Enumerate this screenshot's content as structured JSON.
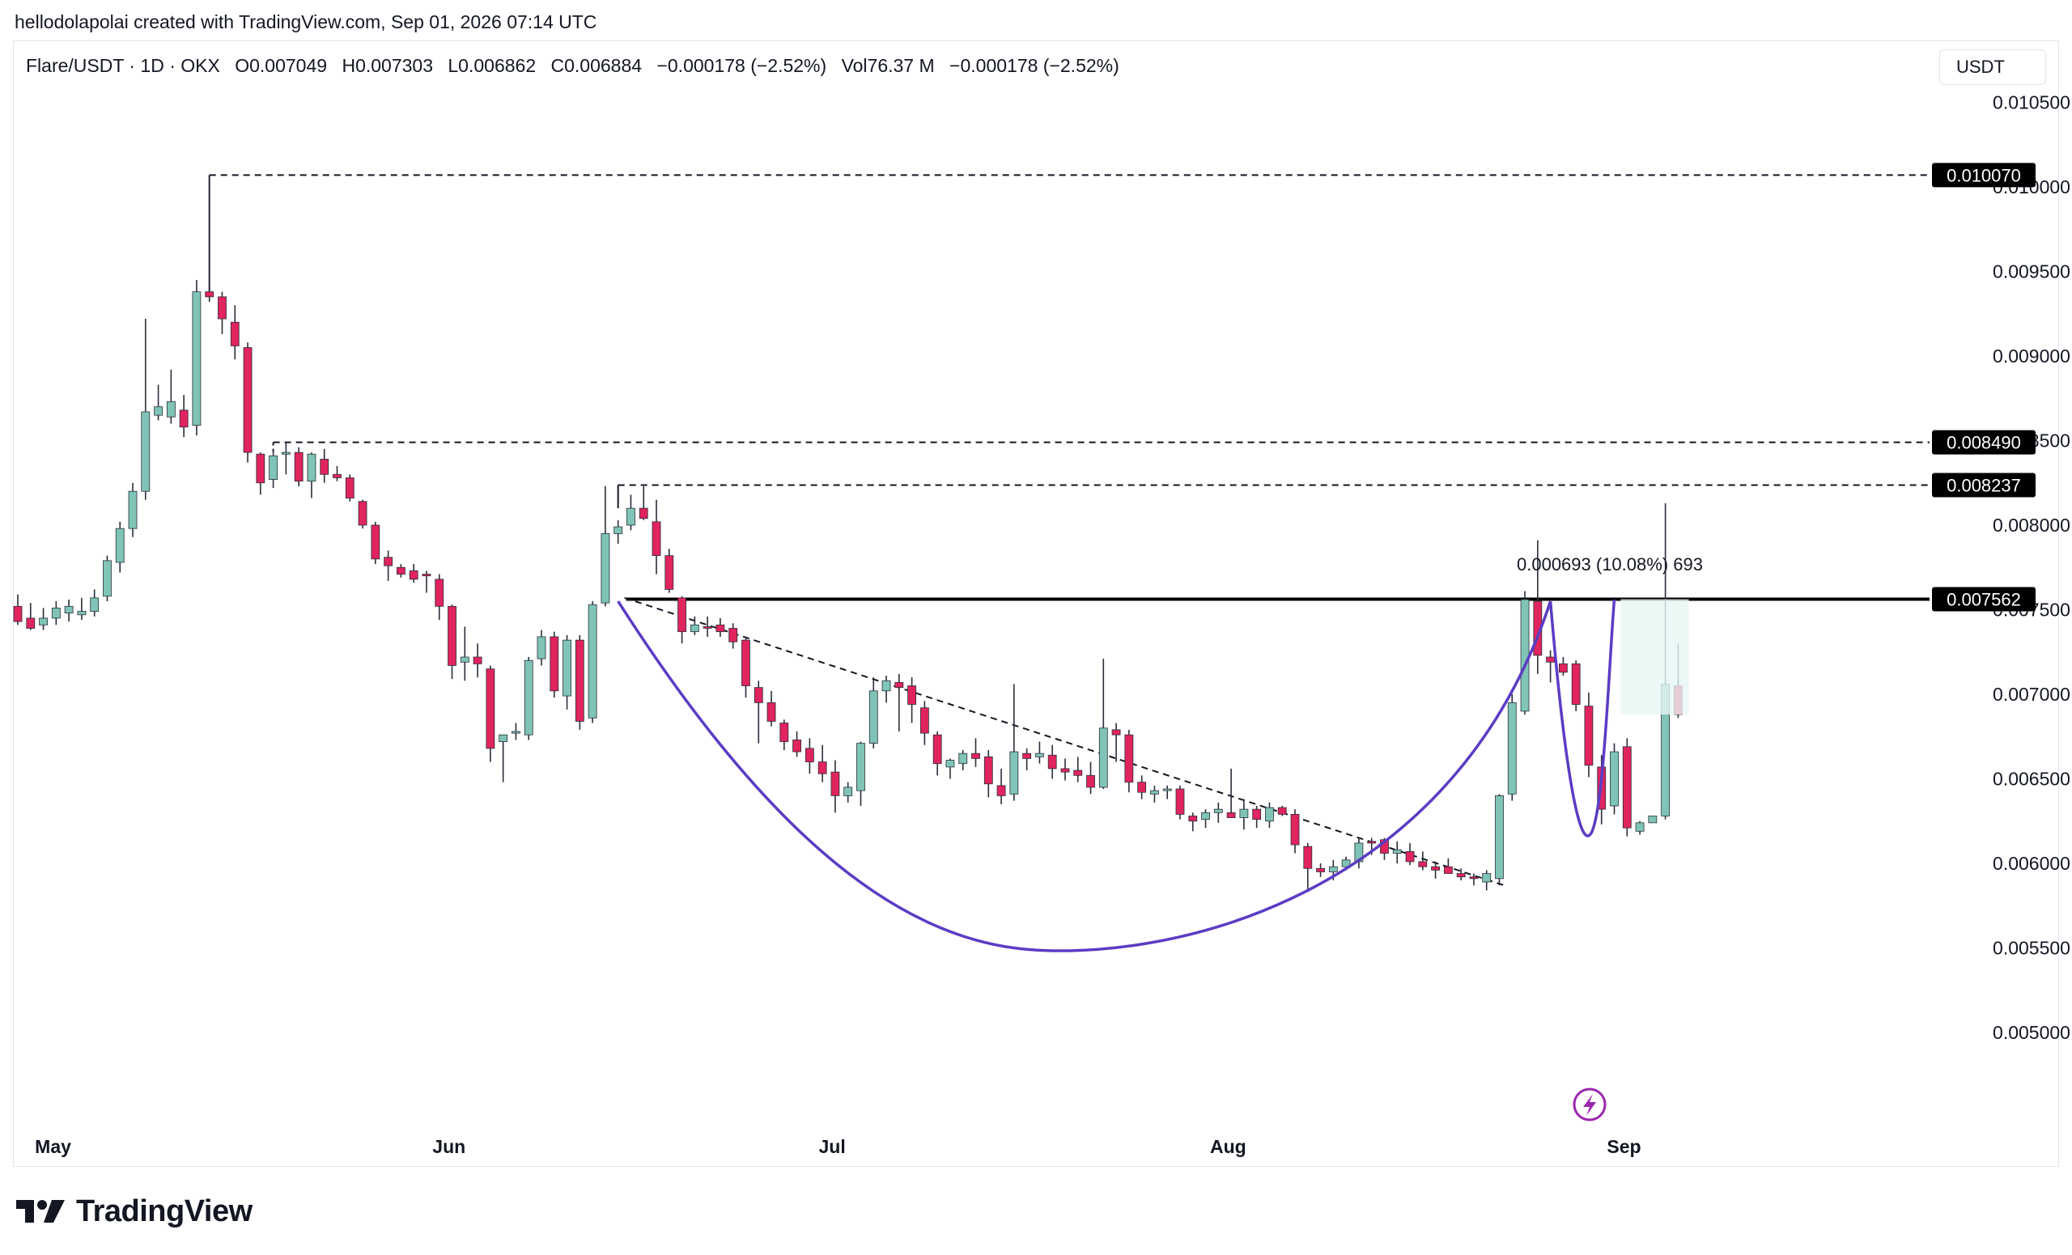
{
  "caption": "hellodolapolai created with TradingView.com, Sep 01, 2026 07:14 UTC",
  "legend": {
    "symbol": "Flare/USDT · 1D · OKX",
    "open": "O0.007049",
    "high": "H0.007303",
    "low": "L0.006862",
    "close": "C0.006884",
    "change": "−0.000178 (−2.52%)",
    "volume": "Vol76.37 M",
    "volume_change": "−0.000178 (−2.52%)"
  },
  "currency": "USDT",
  "brand": "TradingView",
  "colors": {
    "up": "#7fc4b6",
    "down": "#e0245e",
    "curve": "#5b3cc4",
    "line": "#000000"
  },
  "chart_data": {
    "type": "candlestick",
    "ylim": [
      0.0047,
      0.0106
    ],
    "y_ticks": [
      "0.010500",
      "0.010000",
      "0.009500",
      "0.009000",
      "0.008500",
      "0.008000",
      "0.007500",
      "0.007000",
      "0.006500",
      "0.006000",
      "0.005500",
      "0.005000"
    ],
    "x_labels": [
      {
        "label": "May",
        "index": 2
      },
      {
        "label": "Jun",
        "index": 33
      },
      {
        "label": "Jul",
        "index": 63
      },
      {
        "label": "Aug",
        "index": 94
      },
      {
        "label": "Sep",
        "index": 125
      }
    ],
    "candles": [
      [
        0.00752,
        0.00759,
        0.00741,
        0.00743
      ],
      [
        0.00745,
        0.00754,
        0.00738,
        0.00739
      ],
      [
        0.00741,
        0.00751,
        0.00738,
        0.00745
      ],
      [
        0.00745,
        0.00755,
        0.00741,
        0.00751
      ],
      [
        0.00748,
        0.00756,
        0.00743,
        0.00752
      ],
      [
        0.00747,
        0.00757,
        0.00744,
        0.00749
      ],
      [
        0.00749,
        0.00762,
        0.00746,
        0.00757
      ],
      [
        0.00758,
        0.00782,
        0.00755,
        0.00779
      ],
      [
        0.00778,
        0.00802,
        0.00772,
        0.00798
      ],
      [
        0.00798,
        0.00825,
        0.00793,
        0.0082
      ],
      [
        0.0082,
        0.00922,
        0.00815,
        0.00867
      ],
      [
        0.00865,
        0.00883,
        0.00862,
        0.0087
      ],
      [
        0.00864,
        0.00892,
        0.0086,
        0.00873
      ],
      [
        0.00868,
        0.00877,
        0.00852,
        0.00858
      ],
      [
        0.00859,
        0.00945,
        0.00853,
        0.00938
      ],
      [
        0.00938,
        0.01007,
        0.00932,
        0.00935
      ],
      [
        0.00935,
        0.00938,
        0.00913,
        0.00922
      ],
      [
        0.0092,
        0.0093,
        0.00898,
        0.00906
      ],
      [
        0.00905,
        0.00908,
        0.00837,
        0.00843
      ],
      [
        0.00842,
        0.00843,
        0.00818,
        0.00825
      ],
      [
        0.00827,
        0.00845,
        0.00822,
        0.00841
      ],
      [
        0.00842,
        0.00849,
        0.0083,
        0.00843
      ],
      [
        0.00843,
        0.00846,
        0.00823,
        0.00826
      ],
      [
        0.00826,
        0.00843,
        0.00816,
        0.00842
      ],
      [
        0.00839,
        0.00845,
        0.00825,
        0.0083
      ],
      [
        0.0083,
        0.00835,
        0.00826,
        0.00828
      ],
      [
        0.00828,
        0.0083,
        0.00814,
        0.00816
      ],
      [
        0.00814,
        0.00815,
        0.00798,
        0.008
      ],
      [
        0.008,
        0.00802,
        0.00777,
        0.0078
      ],
      [
        0.00781,
        0.00785,
        0.00767,
        0.00776
      ],
      [
        0.00775,
        0.00777,
        0.00769,
        0.00771
      ],
      [
        0.00773,
        0.00777,
        0.00766,
        0.00768
      ],
      [
        0.00771,
        0.00773,
        0.0076,
        0.0077
      ],
      [
        0.00768,
        0.00771,
        0.00744,
        0.00752
      ],
      [
        0.00752,
        0.00753,
        0.00709,
        0.00717
      ],
      [
        0.00719,
        0.0074,
        0.00708,
        0.00722
      ],
      [
        0.00722,
        0.0073,
        0.0071,
        0.00718
      ],
      [
        0.00715,
        0.00717,
        0.0066,
        0.00668
      ],
      [
        0.00672,
        0.00675,
        0.00648,
        0.00676
      ],
      [
        0.00677,
        0.00683,
        0.00673,
        0.00678
      ],
      [
        0.00676,
        0.00722,
        0.00673,
        0.0072
      ],
      [
        0.00721,
        0.00738,
        0.00717,
        0.00734
      ],
      [
        0.00734,
        0.00737,
        0.00698,
        0.00702
      ],
      [
        0.00699,
        0.00735,
        0.00691,
        0.00732
      ],
      [
        0.00732,
        0.00735,
        0.00679,
        0.00684
      ],
      [
        0.00686,
        0.00755,
        0.00683,
        0.00753
      ],
      [
        0.00754,
        0.00823,
        0.00752,
        0.00795
      ],
      [
        0.00795,
        0.00803,
        0.00789,
        0.00799
      ],
      [
        0.008,
        0.00818,
        0.00797,
        0.0081
      ],
      [
        0.0081,
        0.00823,
        0.00803,
        0.00804
      ],
      [
        0.00802,
        0.00815,
        0.00771,
        0.00782
      ],
      [
        0.00782,
        0.00786,
        0.0076,
        0.00762
      ],
      [
        0.00757,
        0.00758,
        0.0073,
        0.00737
      ],
      [
        0.00737,
        0.00746,
        0.00735,
        0.00741
      ],
      [
        0.0074,
        0.00746,
        0.00734,
        0.00739
      ],
      [
        0.00741,
        0.00745,
        0.00734,
        0.00737
      ],
      [
        0.00739,
        0.00742,
        0.00727,
        0.00731
      ],
      [
        0.00732,
        0.00734,
        0.00698,
        0.00705
      ],
      [
        0.00704,
        0.00708,
        0.00671,
        0.00695
      ],
      [
        0.00695,
        0.00702,
        0.00681,
        0.00684
      ],
      [
        0.00683,
        0.00685,
        0.00667,
        0.00672
      ],
      [
        0.00673,
        0.00678,
        0.00663,
        0.00666
      ],
      [
        0.00668,
        0.00674,
        0.00653,
        0.0066
      ],
      [
        0.0066,
        0.0067,
        0.00648,
        0.00653
      ],
      [
        0.00654,
        0.00661,
        0.0063,
        0.0064
      ],
      [
        0.0064,
        0.00648,
        0.00636,
        0.00645
      ],
      [
        0.00643,
        0.00672,
        0.00634,
        0.00671
      ],
      [
        0.00671,
        0.0071,
        0.00668,
        0.00702
      ],
      [
        0.00702,
        0.00711,
        0.00695,
        0.00708
      ],
      [
        0.00707,
        0.00712,
        0.00678,
        0.00704
      ],
      [
        0.00705,
        0.0071,
        0.00683,
        0.00694
      ],
      [
        0.00692,
        0.00696,
        0.0067,
        0.00677
      ],
      [
        0.00676,
        0.00678,
        0.00652,
        0.00659
      ],
      [
        0.00657,
        0.00662,
        0.0065,
        0.00661
      ],
      [
        0.00659,
        0.00667,
        0.00655,
        0.00665
      ],
      [
        0.00665,
        0.00674,
        0.00657,
        0.00662
      ],
      [
        0.00663,
        0.00667,
        0.00639,
        0.00647
      ],
      [
        0.00646,
        0.00656,
        0.00635,
        0.0064
      ],
      [
        0.00641,
        0.00706,
        0.00637,
        0.00666
      ],
      [
        0.00665,
        0.00668,
        0.00655,
        0.00662
      ],
      [
        0.00663,
        0.00672,
        0.00659,
        0.00665
      ],
      [
        0.00664,
        0.0067,
        0.0065,
        0.00656
      ],
      [
        0.00656,
        0.00662,
        0.00649,
        0.00654
      ],
      [
        0.00655,
        0.00663,
        0.00648,
        0.00652
      ],
      [
        0.00652,
        0.0066,
        0.00641,
        0.00645
      ],
      [
        0.00645,
        0.00721,
        0.00644,
        0.0068
      ],
      [
        0.00679,
        0.00683,
        0.0066,
        0.00676
      ],
      [
        0.00676,
        0.00679,
        0.00642,
        0.00648
      ],
      [
        0.00648,
        0.00652,
        0.00638,
        0.00642
      ],
      [
        0.00641,
        0.00646,
        0.00636,
        0.00643
      ],
      [
        0.00643,
        0.00646,
        0.00638,
        0.00644
      ],
      [
        0.00644,
        0.00646,
        0.00626,
        0.00629
      ],
      [
        0.00628,
        0.0063,
        0.00619,
        0.00625
      ],
      [
        0.00626,
        0.00632,
        0.00621,
        0.0063
      ],
      [
        0.0063,
        0.00636,
        0.00624,
        0.00632
      ],
      [
        0.0063,
        0.00656,
        0.00627,
        0.00627
      ],
      [
        0.00627,
        0.00638,
        0.0062,
        0.00632
      ],
      [
        0.00632,
        0.00634,
        0.00621,
        0.00626
      ],
      [
        0.00625,
        0.00636,
        0.00621,
        0.00633
      ],
      [
        0.00633,
        0.00634,
        0.00628,
        0.00629
      ],
      [
        0.00629,
        0.00632,
        0.00606,
        0.00611
      ],
      [
        0.0061,
        0.00612,
        0.00583,
        0.00597
      ],
      [
        0.00597,
        0.006,
        0.00592,
        0.00595
      ],
      [
        0.00595,
        0.00602,
        0.0059,
        0.00598
      ],
      [
        0.00598,
        0.00604,
        0.00596,
        0.00602
      ],
      [
        0.00601,
        0.00615,
        0.00597,
        0.00612
      ],
      [
        0.00613,
        0.00615,
        0.00605,
        0.00612
      ],
      [
        0.00614,
        0.00615,
        0.00602,
        0.00606
      ],
      [
        0.00606,
        0.00613,
        0.006,
        0.00608
      ],
      [
        0.00607,
        0.00612,
        0.00599,
        0.00601
      ],
      [
        0.00601,
        0.00607,
        0.00596,
        0.00598
      ],
      [
        0.00598,
        0.00601,
        0.00591,
        0.00596
      ],
      [
        0.00598,
        0.00603,
        0.00594,
        0.00594
      ],
      [
        0.00594,
        0.00597,
        0.0059,
        0.00592
      ],
      [
        0.00592,
        0.00594,
        0.00587,
        0.00591
      ],
      [
        0.00589,
        0.00596,
        0.00584,
        0.00594
      ],
      [
        0.00591,
        0.00641,
        0.00587,
        0.0064
      ],
      [
        0.00641,
        0.007,
        0.00637,
        0.00695
      ],
      [
        0.0069,
        0.00761,
        0.00688,
        0.00756
      ],
      [
        0.00755,
        0.00791,
        0.00712,
        0.00723
      ],
      [
        0.00722,
        0.00726,
        0.00707,
        0.00719
      ],
      [
        0.00718,
        0.00722,
        0.00711,
        0.00713
      ],
      [
        0.00718,
        0.0072,
        0.0069,
        0.00694
      ],
      [
        0.00693,
        0.00701,
        0.00651,
        0.00658
      ],
      [
        0.00657,
        0.00664,
        0.00623,
        0.00632
      ],
      [
        0.00634,
        0.00671,
        0.00629,
        0.00666
      ],
      [
        0.00669,
        0.00674,
        0.00616,
        0.00621
      ],
      [
        0.00619,
        0.00625,
        0.00617,
        0.00624
      ],
      [
        0.00624,
        0.00628,
        0.00624,
        0.00628
      ],
      [
        0.00628,
        0.00813,
        0.00626,
        0.00706
      ],
      [
        0.00705,
        0.0073,
        0.00686,
        0.00688
      ]
    ],
    "levels": [
      {
        "label": "0.010070",
        "value": 0.01007,
        "style": "dashed"
      },
      {
        "label": "0.008490",
        "value": 0.00849,
        "style": "dashed"
      },
      {
        "label": "0.008237",
        "value": 0.008237,
        "style": "dashed"
      },
      {
        "label": "0.007562",
        "value": 0.007562,
        "style": "solid"
      }
    ],
    "measure_label": "0.000693 (10.08%) 693",
    "trendline": {
      "from": [
        47,
        0.00757
      ],
      "to": [
        116,
        0.00587
      ]
    }
  }
}
